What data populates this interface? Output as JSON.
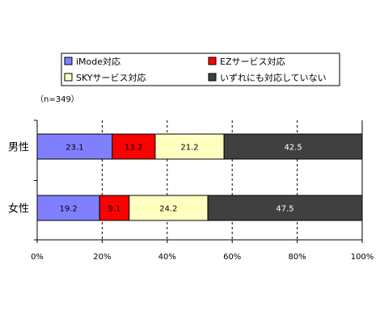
{
  "chart_data": {
    "type": "bar",
    "orientation": "horizontal",
    "stacked": true,
    "note": "（n=349）",
    "categories": [
      "男性",
      "女性"
    ],
    "series": [
      {
        "name": "iMode対応",
        "values": [
          23.1,
          19.2
        ],
        "color": "#8080ff",
        "label_color": "#000000"
      },
      {
        "name": "EZサービス対応",
        "values": [
          13.2,
          9.1
        ],
        "color": "#ff0000",
        "label_color": "#000000"
      },
      {
        "name": "SKYサービス対応",
        "values": [
          21.2,
          24.2
        ],
        "color": "#ffffc0",
        "label_color": "#000000"
      },
      {
        "name": "いずれにも対応していない",
        "values": [
          42.5,
          47.5
        ],
        "color": "#404040",
        "label_color": "#ffffff"
      }
    ],
    "xlim": [
      0,
      100
    ],
    "xticks": [
      "0%",
      "20%",
      "40%",
      "60%",
      "80%",
      "100%"
    ],
    "grid": "vertical dashed",
    "legend_position": "top"
  }
}
